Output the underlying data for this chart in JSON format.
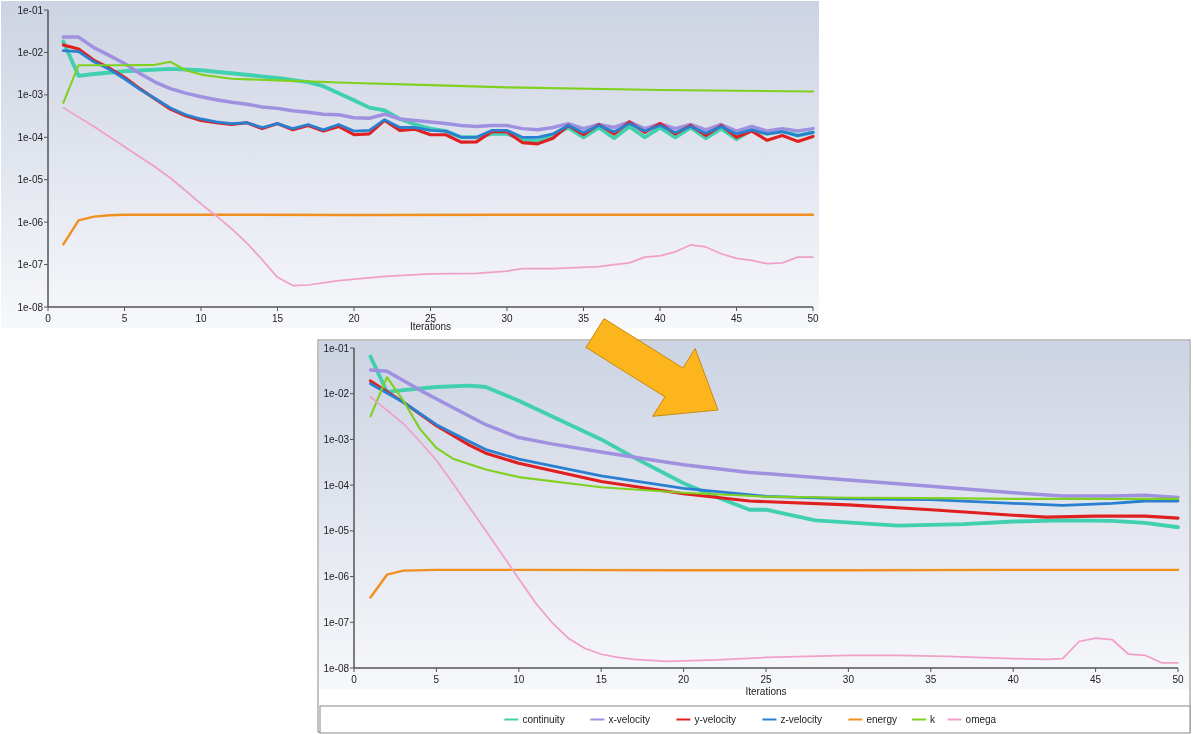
{
  "chart_data": [
    {
      "type": "line",
      "xlabel": "Iterations",
      "log": true,
      "grid": false,
      "xlim": [
        0,
        50
      ],
      "xticks": [
        0,
        5,
        10,
        15,
        20,
        25,
        30,
        35,
        40,
        45,
        50
      ],
      "ylim": [
        1e-08,
        0.1
      ],
      "yticks": [
        {
          "value": 1e-08,
          "label": "1e-08"
        },
        {
          "value": 1e-07,
          "label": "1e-07"
        },
        {
          "value": 1e-06,
          "label": "1e-06"
        },
        {
          "value": 1e-05,
          "label": "1e-05"
        },
        {
          "value": 0.0001,
          "label": "1e-04"
        },
        {
          "value": 0.001,
          "label": "1e-03"
        },
        {
          "value": 0.01,
          "label": "1e-02"
        },
        {
          "value": 0.1,
          "label": "1e-01"
        }
      ],
      "series": [
        {
          "color": "#40d0b0",
          "x": [
            1,
            2,
            3,
            5,
            8,
            10,
            15,
            17,
            18,
            20,
            21,
            22,
            23,
            24,
            25,
            26,
            27,
            28,
            29,
            30,
            31,
            32,
            33,
            34,
            35,
            36,
            37,
            38,
            39,
            40,
            41,
            42,
            43,
            44,
            45,
            46,
            47,
            48,
            49,
            50
          ],
          "values": [
            0.018,
            0.0028,
            0.0031,
            0.0036,
            0.0041,
            0.0038,
            0.0025,
            0.002,
            0.0016,
            0.00075,
            0.0005,
            0.00043,
            0.00027,
            0.0002,
            0.00016,
            0.00014,
            0.0001,
            0.0001,
            0.00012,
            0.00012,
            9e-05,
            8e-05,
            0.00011,
            0.00017,
            0.0001,
            0.00017,
            9.5e-05,
            0.00018,
            0.0001,
            0.00017,
            0.0001,
            0.00017,
            9.5e-05,
            0.00016,
            9e-05,
            0.00015,
            0.00012,
            0.00014,
            0.00011,
            0.00013
          ]
        },
        {
          "color": "#a090e0",
          "x": [
            1,
            2,
            3,
            4,
            5,
            6,
            7,
            8,
            9,
            10,
            11,
            12,
            13,
            14,
            15,
            16,
            17,
            18,
            19,
            20,
            21,
            22,
            23,
            24,
            25,
            26,
            27,
            28,
            29,
            30,
            31,
            32,
            33,
            34,
            35,
            36,
            37,
            38,
            39,
            40,
            41,
            42,
            43,
            44,
            45,
            46,
            47,
            48,
            49,
            50
          ],
          "values": [
            0.023,
            0.023,
            0.013,
            0.0085,
            0.0055,
            0.0032,
            0.002,
            0.0014,
            0.0011,
            0.0009,
            0.00077,
            0.00067,
            0.0006,
            0.00052,
            0.00048,
            0.00042,
            0.00039,
            0.00035,
            0.00034,
            0.00029,
            0.00028,
            0.00035,
            0.00027,
            0.00025,
            0.00023,
            0.00021,
            0.00019,
            0.00018,
            0.00019,
            0.00019,
            0.00016,
            0.00015,
            0.00017,
            0.00021,
            0.00016,
            0.0002,
            0.00017,
            0.00023,
            0.00016,
            0.00021,
            0.00016,
            0.0002,
            0.00015,
            0.0002,
            0.00014,
            0.00018,
            0.00014,
            0.00016,
            0.00014,
            0.00016
          ]
        },
        {
          "color": "#e02020",
          "x": [
            1,
            2,
            3,
            4,
            5,
            6,
            7,
            8,
            9,
            10,
            11,
            12,
            13,
            14,
            15,
            16,
            17,
            18,
            19,
            20,
            21,
            22,
            23,
            24,
            25,
            26,
            27,
            28,
            29,
            30,
            31,
            32,
            33,
            34,
            35,
            36,
            37,
            38,
            39,
            40,
            41,
            42,
            43,
            44,
            45,
            46,
            47,
            48,
            49,
            50
          ],
          "values": [
            0.015,
            0.012,
            0.0065,
            0.0043,
            0.0026,
            0.0014,
            0.0008,
            0.00046,
            0.00032,
            0.00025,
            0.00022,
            0.0002,
            0.00022,
            0.00016,
            0.00021,
            0.00015,
            0.00019,
            0.00014,
            0.00018,
            0.000115,
            0.00012,
            0.00025,
            0.000145,
            0.000155,
            0.000115,
            0.000115,
            7.7e-05,
            7.8e-05,
            0.000135,
            0.000135,
            7.5e-05,
            7e-05,
            9.5e-05,
            0.00019,
            0.000115,
            0.0002,
            0.00012,
            0.00023,
            0.00013,
            0.00021,
            0.00012,
            0.00019,
            0.00011,
            0.00019,
            0.0001,
            0.00014,
            8.5e-05,
            0.00011,
            8e-05,
            0.000105
          ]
        },
        {
          "color": "#2a80d0",
          "x": [
            1,
            2,
            3,
            4,
            5,
            6,
            7,
            8,
            9,
            10,
            11,
            12,
            13,
            14,
            15,
            16,
            17,
            18,
            19,
            20,
            21,
            22,
            23,
            24,
            25,
            26,
            27,
            28,
            29,
            30,
            31,
            32,
            33,
            34,
            35,
            36,
            37,
            38,
            39,
            40,
            41,
            42,
            43,
            44,
            45,
            46,
            47,
            48,
            49,
            50
          ],
          "values": [
            0.011,
            0.0105,
            0.006,
            0.004,
            0.0024,
            0.00135,
            0.00082,
            0.00049,
            0.00034,
            0.00027,
            0.00023,
            0.00021,
            0.00022,
            0.00017,
            0.00021,
            0.00016,
            0.0002,
            0.00015,
            0.0002,
            0.00014,
            0.000145,
            0.00026,
            0.00017,
            0.00017,
            0.000145,
            0.00014,
            0.0001,
            0.0001,
            0.000145,
            0.000145,
            0.0001,
            0.0001,
            0.00012,
            0.00019,
            0.00013,
            0.00019,
            0.000135,
            0.00021,
            0.00014,
            0.00019,
            0.00013,
            0.00018,
            0.000125,
            0.00018,
            0.00012,
            0.00015,
            0.00012,
            0.000135,
            0.00011,
            0.00013
          ]
        },
        {
          "color": "#f09020",
          "x": [
            1,
            2,
            3,
            4,
            5,
            10,
            20,
            30,
            40,
            50
          ],
          "values": [
            3e-07,
            1.1e-06,
            1.35e-06,
            1.45e-06,
            1.5e-06,
            1.5e-06,
            1.48e-06,
            1.5e-06,
            1.5e-06,
            1.5e-06
          ]
        },
        {
          "color": "#80d020",
          "x": [
            1,
            2,
            3,
            5,
            7,
            8,
            9,
            10,
            12,
            15,
            20,
            25,
            30,
            40,
            50
          ],
          "values": [
            0.00065,
            0.005,
            0.005,
            0.005,
            0.0051,
            0.006,
            0.0038,
            0.003,
            0.0024,
            0.0022,
            0.0019,
            0.0017,
            0.0015,
            0.0013,
            0.0012
          ]
        },
        {
          "color": "#f0a0c8",
          "x": [
            1,
            3,
            5,
            7,
            8,
            9,
            10,
            11,
            12,
            13,
            14,
            15,
            16,
            17,
            19,
            22,
            25,
            28,
            30,
            31,
            33,
            36,
            37,
            38,
            39,
            40,
            41,
            42,
            43,
            44,
            45,
            46,
            47,
            48,
            49,
            50
          ],
          "values": [
            0.0005,
            0.00018,
            6e-05,
            2e-05,
            1.1e-05,
            5.5e-06,
            2.7e-06,
            1.4e-06,
            7e-07,
            3.2e-07,
            1.3e-07,
            5e-08,
            3.2e-08,
            3.3e-08,
            4.2e-08,
            5.3e-08,
            6e-08,
            6.2e-08,
            7e-08,
            8e-08,
            8e-08,
            9e-08,
            1e-07,
            1.1e-07,
            1.5e-07,
            1.6e-07,
            2e-07,
            2.9e-07,
            2.6e-07,
            1.8e-07,
            1.4e-07,
            1.25e-07,
            1.05e-07,
            1.1e-07,
            1.5e-07,
            1.5e-07
          ]
        }
      ]
    },
    {
      "type": "line",
      "xlabel": "Iterations",
      "log": true,
      "grid": false,
      "legend": "bottom",
      "xlim": [
        0,
        50
      ],
      "xticks": [
        0,
        5,
        10,
        15,
        20,
        25,
        30,
        35,
        40,
        45,
        50
      ],
      "ylim": [
        1e-08,
        0.1
      ],
      "yticks": [
        {
          "value": 1e-08,
          "label": "1e-08"
        },
        {
          "value": 1e-07,
          "label": "1e-07"
        },
        {
          "value": 1e-06,
          "label": "1e-06"
        },
        {
          "value": 1e-05,
          "label": "1e-05"
        },
        {
          "value": 0.0001,
          "label": "1e-04"
        },
        {
          "value": 0.001,
          "label": "1e-03"
        },
        {
          "value": 0.01,
          "label": "1e-02"
        },
        {
          "value": 0.1,
          "label": "1e-01"
        }
      ],
      "series": [
        {
          "name": "continuity",
          "color": "#40d0b0",
          "x": [
            1,
            2,
            3,
            5,
            7,
            8,
            10,
            15,
            17,
            20,
            22,
            24,
            25,
            28,
            33,
            37,
            40,
            43,
            46,
            48,
            50
          ],
          "values": [
            0.065,
            0.011,
            0.012,
            0.014,
            0.015,
            0.014,
            0.007,
            0.001,
            0.0004,
            0.00011,
            5.5e-05,
            2.9e-05,
            2.9e-05,
            1.7e-05,
            1.3e-05,
            1.4e-05,
            1.6e-05,
            1.7e-05,
            1.65e-05,
            1.5e-05,
            1.2e-05
          ]
        },
        {
          "name": "x-velocity",
          "color": "#a090e0",
          "x": [
            1,
            2,
            4,
            6,
            8,
            10,
            12,
            15,
            18,
            20,
            24,
            30,
            35,
            40,
            43,
            46,
            48,
            50
          ],
          "values": [
            0.033,
            0.031,
            0.012,
            0.005,
            0.0021,
            0.0011,
            0.0008,
            0.00053,
            0.00036,
            0.00028,
            0.00019,
            0.00013,
            9.5e-05,
            6.8e-05,
            5.8e-05,
            5.8e-05,
            6e-05,
            5.4e-05
          ]
        },
        {
          "name": "y-velocity",
          "color": "#e02020",
          "x": [
            1,
            3,
            5,
            7,
            8,
            10,
            15,
            20,
            24,
            30,
            35,
            40,
            42,
            45,
            48,
            50
          ],
          "values": [
            0.019,
            0.0065,
            0.002,
            0.00075,
            0.0005,
            0.0003,
            0.00012,
            6.5e-05,
            4.5e-05,
            3.7e-05,
            2.9e-05,
            2.2e-05,
            2e-05,
            2.1e-05,
            2.1e-05,
            1.9e-05
          ]
        },
        {
          "name": "z-velocity",
          "color": "#2a80d0",
          "x": [
            1,
            3,
            5,
            7,
            8,
            10,
            15,
            20,
            25,
            30,
            35,
            40,
            43,
            46,
            48,
            50
          ],
          "values": [
            0.0165,
            0.0065,
            0.0021,
            0.0009,
            0.0006,
            0.00037,
            0.00016,
            8.5e-05,
            5.7e-05,
            5e-05,
            4.8e-05,
            4e-05,
            3.6e-05,
            4e-05,
            4.5e-05,
            4.5e-05
          ]
        },
        {
          "name": "energy",
          "color": "#f09020",
          "x": [
            1,
            2,
            3,
            5,
            10,
            20,
            30,
            40,
            50
          ],
          "values": [
            3.5e-07,
            1.1e-06,
            1.35e-06,
            1.4e-06,
            1.4e-06,
            1.38e-06,
            1.38e-06,
            1.4e-06,
            1.4e-06
          ]
        },
        {
          "name": "k",
          "color": "#80d020",
          "x": [
            1,
            2,
            3,
            4,
            5,
            6,
            8,
            10,
            15,
            20,
            25,
            30,
            35,
            40,
            45,
            50
          ],
          "values": [
            0.0032,
            0.023,
            0.007,
            0.0017,
            0.00065,
            0.00038,
            0.00022,
            0.00015,
            9e-05,
            6.8e-05,
            5.6e-05,
            5.3e-05,
            5.2e-05,
            5e-05,
            5e-05,
            5e-05
          ]
        },
        {
          "name": "omega",
          "color": "#f0a0c8",
          "x": [
            1,
            3,
            4,
            5,
            6,
            7,
            8,
            9,
            10,
            11,
            12,
            13,
            14,
            15,
            16,
            17,
            19,
            22,
            25,
            30,
            33,
            36,
            40,
            42,
            43,
            44,
            45,
            46,
            47,
            48,
            49,
            50
          ],
          "values": [
            0.0085,
            0.0022,
            0.0009,
            0.00035,
            0.00011,
            3.3e-05,
            1e-05,
            3e-06,
            9e-07,
            2.7e-07,
            1e-07,
            4.5e-08,
            2.7e-08,
            2e-08,
            1.7e-08,
            1.55e-08,
            1.4e-08,
            1.5e-08,
            1.7e-08,
            1.9e-08,
            1.9e-08,
            1.8e-08,
            1.6e-08,
            1.55e-08,
            1.6e-08,
            3.8e-08,
            4.5e-08,
            4.2e-08,
            2e-08,
            1.9e-08,
            1.3e-08,
            1.3e-08
          ]
        }
      ]
    }
  ]
}
